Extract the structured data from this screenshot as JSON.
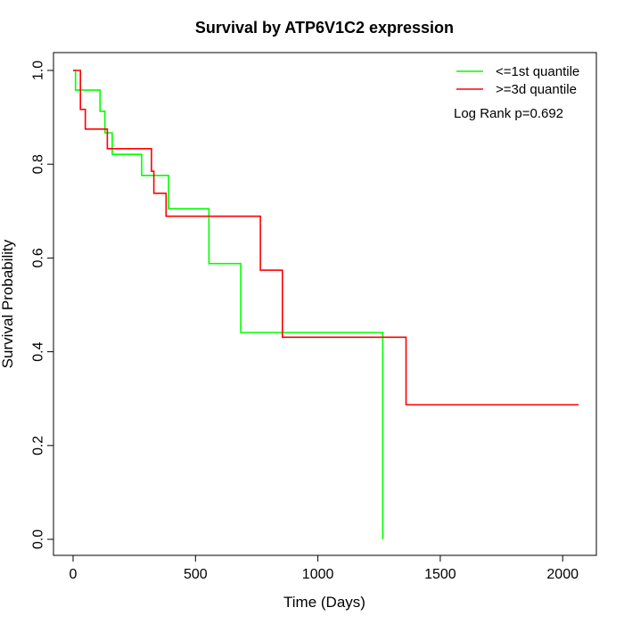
{
  "chart_data": {
    "type": "line",
    "title": "Survival by ATP6V1C2 expression",
    "xlabel": "Time (Days)",
    "ylabel": "Survival Probability",
    "xlim": [
      0,
      2070
    ],
    "ylim": [
      0,
      1
    ],
    "x_ticks": [
      0,
      500,
      1000,
      1500,
      2000
    ],
    "y_ticks": [
      0.0,
      0.2,
      0.4,
      0.6,
      0.8,
      1.0
    ],
    "x_tick_labels": [
      "0",
      "500",
      "1000",
      "1500",
      "2000"
    ],
    "y_tick_labels": [
      "0.0",
      "0.2",
      "0.4",
      "0.6",
      "0.8",
      "1.0"
    ],
    "grid": false,
    "legend_position": "top-right",
    "annotation": "Log Rank p=0.692",
    "series": [
      {
        "name": "<=1st quantile",
        "color": "#00ff00",
        "step": true,
        "x": [
          0,
          10,
          110,
          130,
          160,
          280,
          390,
          555,
          685,
          1265,
          1265
        ],
        "y": [
          1.0,
          0.958,
          0.913,
          0.867,
          0.821,
          0.776,
          0.705,
          0.588,
          0.441,
          0.441,
          0.0
        ]
      },
      {
        "name": ">=3d quantile",
        "color": "#ff0000",
        "step": true,
        "x": [
          0,
          30,
          50,
          140,
          320,
          330,
          380,
          765,
          855,
          1360,
          2065
        ],
        "y": [
          1.0,
          0.917,
          0.875,
          0.833,
          0.785,
          0.738,
          0.689,
          0.574,
          0.431,
          0.287,
          0.287
        ]
      }
    ]
  }
}
